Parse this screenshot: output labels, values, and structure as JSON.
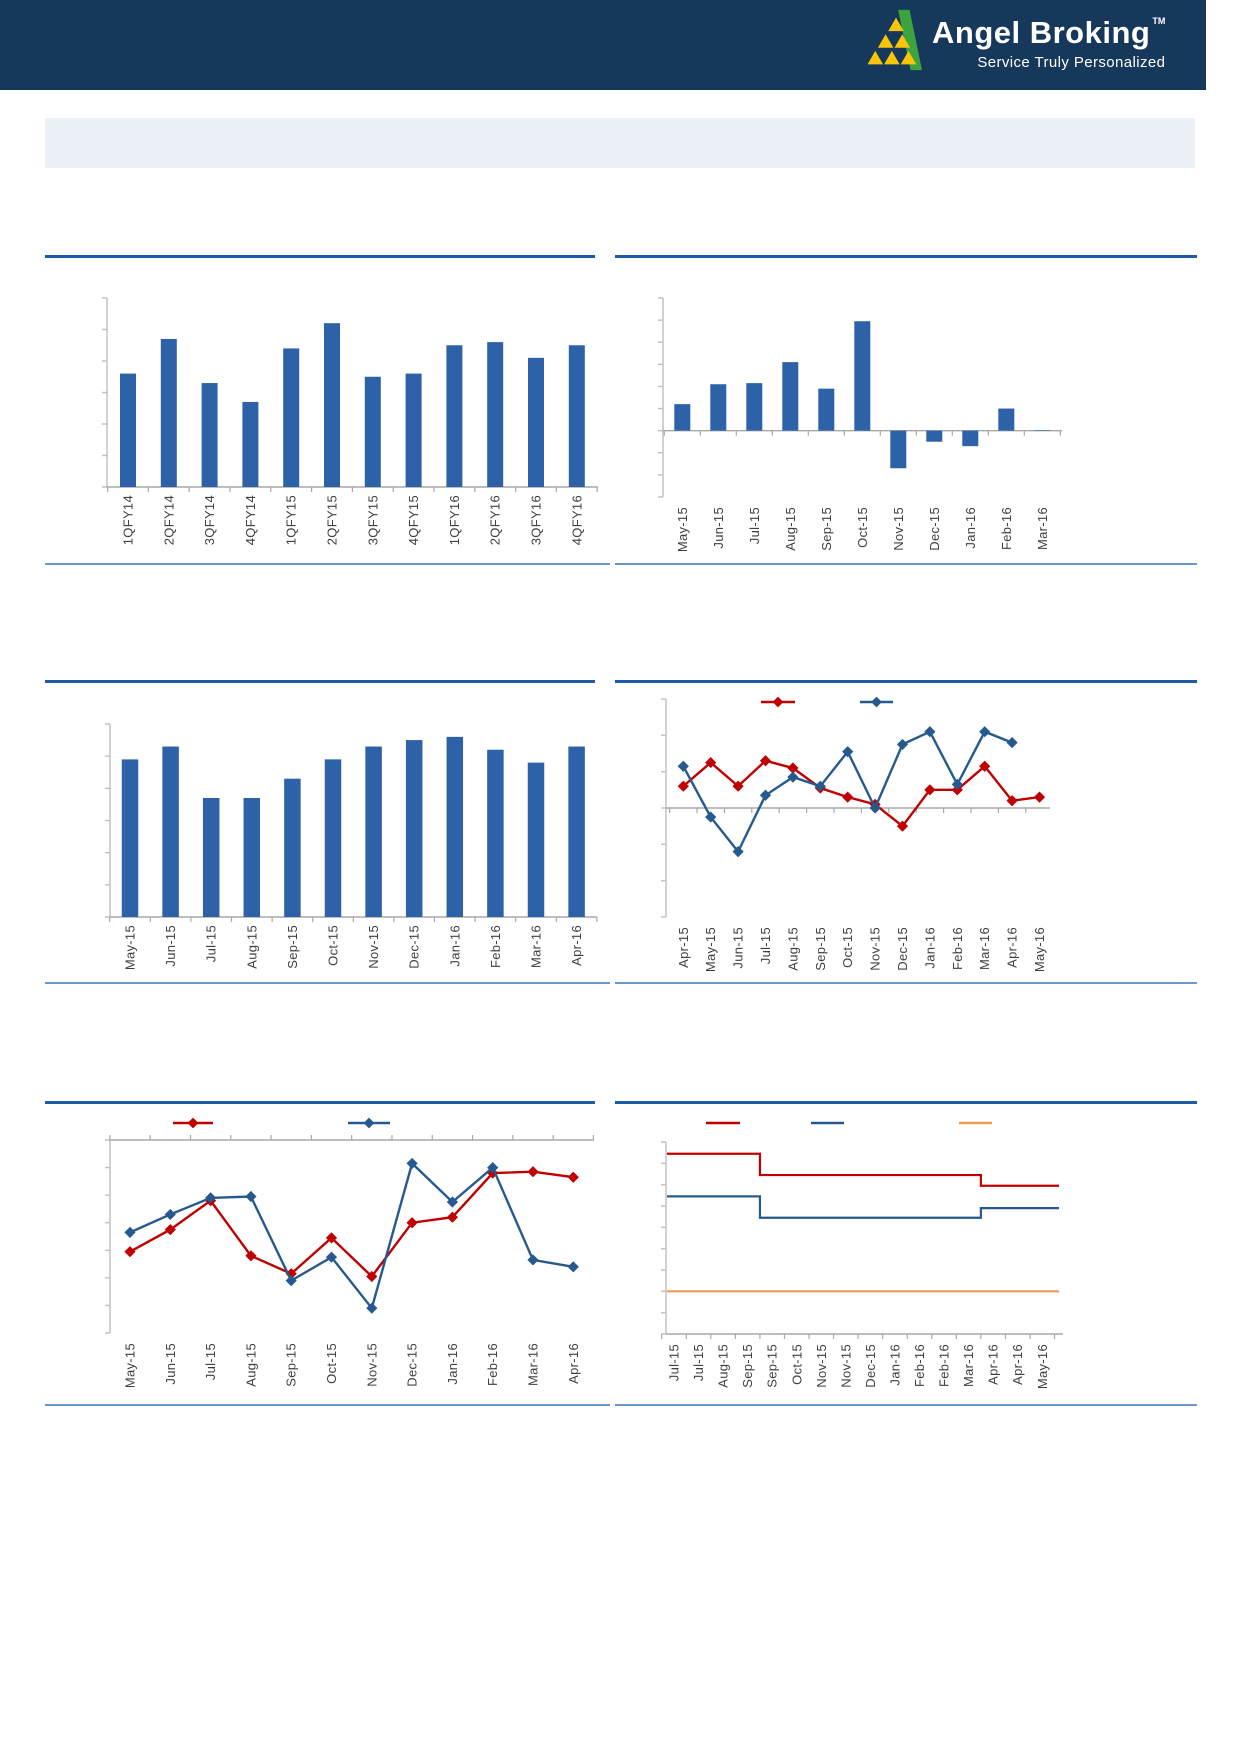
{
  "header": {
    "brand": "Angel Broking",
    "trademark": "TM",
    "tagline": "Service Truly Personalized"
  },
  "banner": {
    "text": ""
  },
  "colors": {
    "header_bg": "#16395B",
    "header_text": "#FFFFFF",
    "banner_bg": "#EBF1F7",
    "logo_green": "#3DA43D",
    "logo_yellow": "#F8C508",
    "bar_blue": "#2E62A8",
    "line_red": "#C00000",
    "line_blue": "#265A8F",
    "line_orange": "#E99A54",
    "axis_gray": "#BFBFBF",
    "zero_gray": "#A9A9A9",
    "divider_top": "#1F5AA8",
    "divider_bottom": "#6D96C8",
    "label_text": "#3F3F3F"
  },
  "chart_data": [
    {
      "id": "quarterly-bar-chart",
      "type": "bar",
      "title": "",
      "categories": [
        "1QFY14",
        "2QFY14",
        "3QFY14",
        "4QFY14",
        "1QFY15",
        "2QFY15",
        "3QFY15",
        "4QFY15",
        "1QFY16",
        "2QFY16",
        "3QFY16",
        "4QFY16"
      ],
      "values": [
        3.6,
        4.7,
        3.3,
        2.7,
        4.4,
        5.2,
        3.5,
        3.6,
        4.5,
        4.6,
        4.1,
        4.5
      ],
      "xlabel": "",
      "ylabel": "",
      "ylim": [
        0,
        6
      ],
      "y_tick_labels": [],
      "grid": false,
      "legend": []
    },
    {
      "id": "monthly-posneg-bar-chart",
      "type": "bar",
      "title": "",
      "categories": [
        "May-15",
        "Jun-15",
        "Jul-15",
        "Aug-15",
        "Sep-15",
        "Oct-15",
        "Nov-15",
        "Dec-15",
        "Jan-16",
        "Feb-16",
        "Mar-16"
      ],
      "values": [
        1.2,
        2.1,
        2.15,
        3.1,
        1.9,
        4.95,
        -1.7,
        -0.5,
        -0.7,
        1.0,
        0.02
      ],
      "xlabel": "",
      "ylabel": "",
      "ylim": [
        -3,
        6
      ],
      "y_tick_labels": [],
      "grid": false,
      "legend": []
    },
    {
      "id": "monthly-bar-chart",
      "type": "bar",
      "title": "",
      "categories": [
        "May-15",
        "Jun-15",
        "Jul-15",
        "Aug-15",
        "Sep-15",
        "Oct-15",
        "Nov-15",
        "Dec-15",
        "Jan-16",
        "Feb-16",
        "Mar-16",
        "Apr-16"
      ],
      "values": [
        4.9,
        5.3,
        3.7,
        3.7,
        4.3,
        4.9,
        5.3,
        5.5,
        5.6,
        5.2,
        4.8,
        5.3
      ],
      "xlabel": "",
      "ylabel": "",
      "ylim": [
        0,
        6
      ],
      "y_tick_labels": [],
      "grid": false,
      "legend": []
    },
    {
      "id": "dual-line-chart",
      "type": "line",
      "title": "",
      "categories": [
        "Apr-15",
        "May-15",
        "Jun-15",
        "Jul-15",
        "Aug-15",
        "Sep-15",
        "Oct-15",
        "Nov-15",
        "Dec-15",
        "Jan-16",
        "Feb-16",
        "Mar-16",
        "Apr-16",
        "May-16"
      ],
      "series": [
        {
          "name": "red-series",
          "label": "",
          "color_key": "line_red",
          "values": [
            0.6,
            1.25,
            0.6,
            1.3,
            1.1,
            0.55,
            0.3,
            0.1,
            -0.5,
            0.5,
            0.5,
            1.15,
            0.2,
            0.3
          ]
        },
        {
          "name": "blue-series",
          "label": "",
          "color_key": "line_blue",
          "values": [
            1.15,
            -0.25,
            -1.2,
            0.35,
            0.85,
            0.6,
            1.55,
            0.0,
            1.75,
            2.1,
            0.65,
            2.1,
            1.8,
            null
          ]
        }
      ],
      "xlabel": "",
      "ylabel": "",
      "ylim": [
        -3,
        3
      ],
      "y_tick_labels": [],
      "grid": false,
      "legend_position": "top-center"
    },
    {
      "id": "negative-dual-line-chart",
      "type": "line",
      "title": "",
      "categories": [
        "May-15",
        "Jun-15",
        "Jul-15",
        "Aug-15",
        "Sep-15",
        "Oct-15",
        "Nov-15",
        "Dec-15",
        "Jan-16",
        "Feb-16",
        "Mar-16",
        "Apr-16"
      ],
      "series": [
        {
          "name": "red-series",
          "label": "",
          "color_key": "line_red",
          "values": [
            -4.05,
            -3.25,
            -2.2,
            -4.2,
            -4.85,
            -3.55,
            -4.95,
            -3.0,
            -2.8,
            -1.2,
            -1.15,
            -1.35
          ]
        },
        {
          "name": "blue-series",
          "label": "",
          "color_key": "line_blue",
          "values": [
            -3.35,
            -2.7,
            -2.1,
            -2.05,
            -5.1,
            -4.25,
            -6.1,
            -0.85,
            -2.25,
            -1.0,
            -4.35,
            -4.6
          ]
        }
      ],
      "xlabel": "",
      "ylabel": "",
      "ylim": [
        -7,
        0
      ],
      "y_tick_labels": [],
      "grid": false,
      "legend_position": "top-center"
    },
    {
      "id": "step-line-chart",
      "type": "step",
      "title": "",
      "categories": [
        "Jul-15",
        "Jul-15",
        "Aug-15",
        "Sep-15",
        "Sep-15",
        "Oct-15",
        "Nov-15",
        "Nov-15",
        "Dec-15",
        "Jan-16",
        "Feb-16",
        "Feb-16",
        "Mar-16",
        "Apr-16",
        "Apr-16",
        "May-16"
      ],
      "series": [
        {
          "name": "red-step",
          "label": "",
          "color_key": "line_red",
          "values": [
            8.45,
            8.45,
            8.45,
            8.45,
            7.45,
            7.45,
            7.45,
            7.45,
            7.45,
            7.45,
            7.45,
            7.45,
            7.45,
            6.95,
            6.95,
            6.95
          ]
        },
        {
          "name": "blue-step",
          "label": "",
          "color_key": "line_blue",
          "values": [
            6.45,
            6.45,
            6.45,
            6.45,
            5.45,
            5.45,
            5.45,
            5.45,
            5.45,
            5.45,
            5.45,
            5.45,
            5.45,
            5.9,
            5.9,
            5.9
          ]
        },
        {
          "name": "orange-step",
          "label": "",
          "color_key": "line_orange",
          "values": [
            2.0,
            2.0,
            2.0,
            2.0,
            2.0,
            2.0,
            2.0,
            2.0,
            2.0,
            2.0,
            2.0,
            2.0,
            2.0,
            2.0,
            2.0,
            2.0
          ]
        }
      ],
      "xlabel": "",
      "ylabel": "",
      "ylim": [
        0,
        9
      ],
      "y_tick_labels": [],
      "grid": false,
      "legend_position": "top-center"
    }
  ]
}
